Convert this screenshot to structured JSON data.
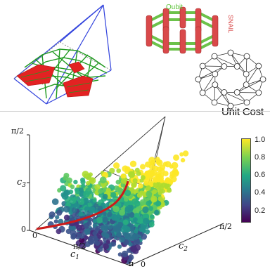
{
  "top_left": {
    "description_label": ""
  },
  "top_right": {
    "qubit_label": "Qubit",
    "snail_label": "SNAIL",
    "unit_cost_label": "Unit Cost"
  },
  "bottom": {
    "axes": {
      "c1_label": "c",
      "c1_sub": "1",
      "c2_label": "c",
      "c2_sub": "2",
      "c3_label": "c",
      "c3_sub": "3",
      "c3_top_tick": "π/2",
      "c3_zero_tick": "0",
      "c1_pi2_tick": "π/2",
      "c1_pi_tick": "π",
      "origin_zero": "0",
      "c1_zero": "0",
      "c2_pi2_tick": "π/2"
    },
    "colorbar": {
      "ticks": [
        "1.0",
        "0.8",
        "0.6",
        "0.4",
        "0.2"
      ]
    }
  },
  "colors": {
    "pyramid_edge_blue": "#3344dd",
    "mesh_green": "#1f9a1f",
    "region_red": "#e32222",
    "qubit_green": "#5ec43a",
    "snail_red": "#d84848",
    "curve_red": "#cc1a1a"
  }
}
